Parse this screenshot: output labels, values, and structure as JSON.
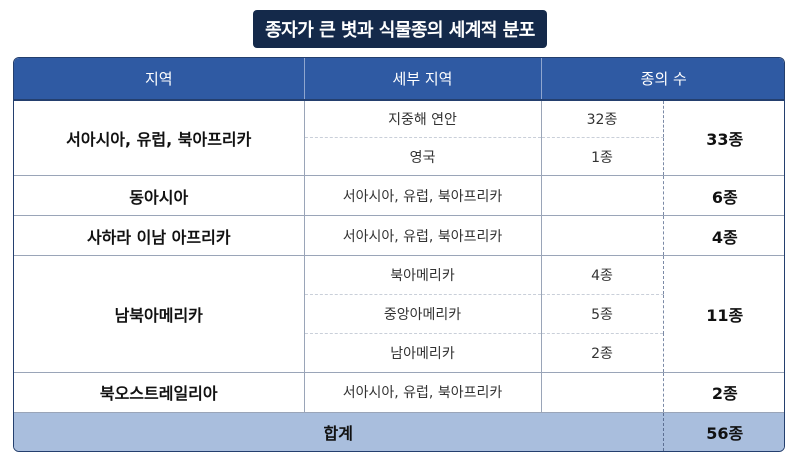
{
  "title": "종자가 큰 볏과 식물종의 세계적 분포",
  "headers": {
    "region": "지역",
    "subregion": "세부 지역",
    "species": "종의 수"
  },
  "groups": [
    {
      "region": "서아시아, 유럽, 북아프리카",
      "total": "33종",
      "rows": [
        {
          "sub": "지중해 연안",
          "count": "32종"
        },
        {
          "sub": "영국",
          "count": "1종"
        }
      ]
    },
    {
      "region": "동아시아",
      "total": "6종",
      "rows": [
        {
          "sub": "서아시아, 유럽, 북아프리카",
          "count": ""
        }
      ]
    },
    {
      "region": "사하라 이남 아프리카",
      "total": "4종",
      "rows": [
        {
          "sub": "서아시아, 유럽, 북아프리카",
          "count": ""
        }
      ]
    },
    {
      "region": "남북아메리카",
      "total": "11종",
      "rows": [
        {
          "sub": "북아메리카",
          "count": "4종"
        },
        {
          "sub": "중앙아메리카",
          "count": "5종"
        },
        {
          "sub": "남아메리카",
          "count": "2종"
        }
      ]
    },
    {
      "region": "북오스트레일리아",
      "total": "2종",
      "rows": [
        {
          "sub": "서아시아, 유럽, 북아프리카",
          "count": ""
        }
      ]
    }
  ],
  "sum": {
    "label": "합계",
    "total": "56종"
  }
}
